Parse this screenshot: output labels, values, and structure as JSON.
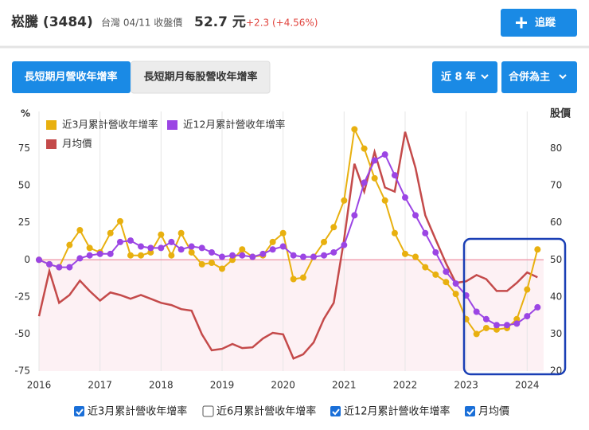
{
  "header": {
    "name": "崧騰 (3484)",
    "market": "台灣 04/11 收盤價",
    "price": "52.7 元",
    "change": "+2.3 (+4.56%)",
    "follow": "追蹤"
  },
  "tabs": [
    "長短期月營收年增率",
    "長短期月每股營收年增率"
  ],
  "dropdowns": [
    "近 8 年",
    "合併為主"
  ],
  "toggles": [
    {
      "label": "近3月累計營收年增率",
      "checked": true
    },
    {
      "label": "近6月累計營收年增率",
      "checked": false
    },
    {
      "label": "近12月累計營收年增率",
      "checked": true
    },
    {
      "label": "月均價",
      "checked": true
    }
  ],
  "chart_data": {
    "type": "line",
    "y_label": "%",
    "y2_label": "股價",
    "x": [
      2016,
      2016.17,
      2016.33,
      2016.5,
      2016.67,
      2016.83,
      2017,
      2017.17,
      2017.33,
      2017.5,
      2017.67,
      2017.83,
      2018,
      2018.17,
      2018.33,
      2018.5,
      2018.67,
      2018.83,
      2019,
      2019.17,
      2019.33,
      2019.5,
      2019.67,
      2019.83,
      2020,
      2020.17,
      2020.33,
      2020.5,
      2020.67,
      2020.83,
      2021,
      2021.17,
      2021.33,
      2021.5,
      2021.67,
      2021.83,
      2022,
      2022.17,
      2022.33,
      2022.5,
      2022.67,
      2022.83,
      2023,
      2023.17,
      2023.33,
      2023.5,
      2023.67,
      2023.83,
      2024,
      2024.17
    ],
    "xlim": [
      2016,
      2024.27
    ],
    "xticks": [
      2016,
      2017,
      2018,
      2019,
      2020,
      2021,
      2022,
      2023,
      2024
    ],
    "ylim": [
      -75,
      100
    ],
    "yticks": [
      -75,
      -50,
      -25,
      0,
      25,
      50,
      75
    ],
    "y2lim": [
      20,
      90
    ],
    "y2ticks": [
      20,
      30,
      40,
      50,
      60,
      70,
      80
    ],
    "grid": true,
    "legend": "top-left",
    "series": [
      {
        "name": "近3月累計營收年增率",
        "color": "#e8b00f",
        "markers": true,
        "values": [
          0,
          -3,
          -5,
          10,
          20,
          8,
          5,
          18,
          26,
          3,
          3,
          5,
          17,
          3,
          18,
          5,
          -3,
          -2,
          -6,
          0,
          7,
          2,
          3,
          12,
          18,
          -13,
          -12,
          2,
          12,
          22,
          40,
          88,
          75,
          55,
          40,
          18,
          4,
          2,
          -5,
          -10,
          -15,
          -23,
          -40,
          -50,
          -46,
          -47,
          -46,
          -40,
          -20,
          7
        ]
      },
      {
        "name": "近12月累計營收年增率",
        "color": "#9b45e4",
        "markers": true,
        "values": [
          0,
          -3,
          -5,
          -5,
          1,
          3,
          4,
          4,
          12,
          13,
          9,
          8,
          8,
          12,
          7,
          9,
          8,
          5,
          2,
          3,
          3,
          2,
          4,
          7,
          9,
          3,
          2,
          2,
          3,
          5,
          10,
          30,
          52,
          67,
          71,
          57,
          42,
          30,
          18,
          5,
          -8,
          -16,
          -24,
          -35,
          -40,
          -44,
          -44,
          -43,
          -38,
          -32
        ]
      },
      {
        "name": "月均價",
        "color": "#c44a4a",
        "axis": "y2",
        "markers": false,
        "values": [
          34.8,
          47,
          38.4,
          40.5,
          44.4,
          41.6,
          39,
          41.2,
          40.5,
          39.5,
          40.5,
          39.5,
          38.4,
          37.8,
          36.7,
          36.3,
          29.9,
          25.6,
          26,
          27.3,
          26.2,
          26.4,
          28.8,
          30.3,
          29.9,
          23.4,
          24.5,
          27.7,
          34.1,
          38.4,
          55.5,
          75.9,
          68.4,
          79.1,
          69.5,
          68.4,
          84.5,
          74.8,
          62,
          55.5,
          49.1,
          43.8,
          44.2,
          45.9,
          44.8,
          41.6,
          41.6,
          43.8,
          46.6,
          45.3
        ]
      }
    ]
  }
}
